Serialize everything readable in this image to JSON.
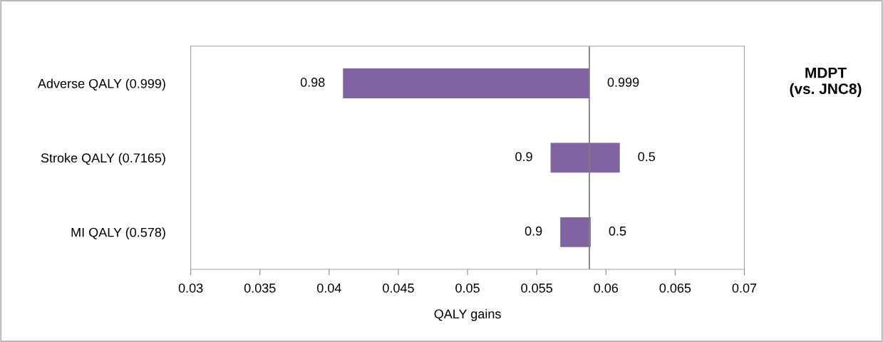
{
  "chart_data": {
    "type": "bar",
    "orientation": "horizontal",
    "title": "MDPT\n(vs. JNC8)",
    "xlabel": "QALY gains",
    "categories": [
      "Adverse QALY (0.999)",
      "Stroke QALY (0.7165)",
      "MI QALY (0.578)"
    ],
    "series": [
      {
        "color": "#8064a2",
        "base": [
          0.041,
          0.056,
          0.0567
        ],
        "values": [
          0.0178,
          0.005,
          0.0022
        ]
      }
    ],
    "xlim": [
      0.03,
      0.07
    ],
    "xticks": [
      0.03,
      0.035,
      0.04,
      0.045,
      0.05,
      0.055,
      0.06,
      0.065,
      0.07
    ],
    "ref_lines": [
      {
        "axis": "x",
        "value": 0.0588,
        "color": "#7f7f7f"
      }
    ],
    "annotations": [
      {
        "text": "0.98",
        "x": 0.041,
        "y": "Adverse QALY (0.999)"
      },
      {
        "text": "0.999",
        "x": 0.0588,
        "y": "Adverse QALY (0.999)"
      },
      {
        "text": "0.9",
        "x": 0.056,
        "y": "Stroke QALY (0.7165)"
      },
      {
        "text": "0.5",
        "x": 0.061,
        "y": "Stroke QALY (0.7165)"
      },
      {
        "text": "0.9",
        "x": 0.0567,
        "y": "MI QALY (0.578)"
      },
      {
        "text": "0.5",
        "x": 0.0589,
        "y": "MI QALY (0.578)"
      }
    ],
    "grid": false,
    "legend": false
  }
}
